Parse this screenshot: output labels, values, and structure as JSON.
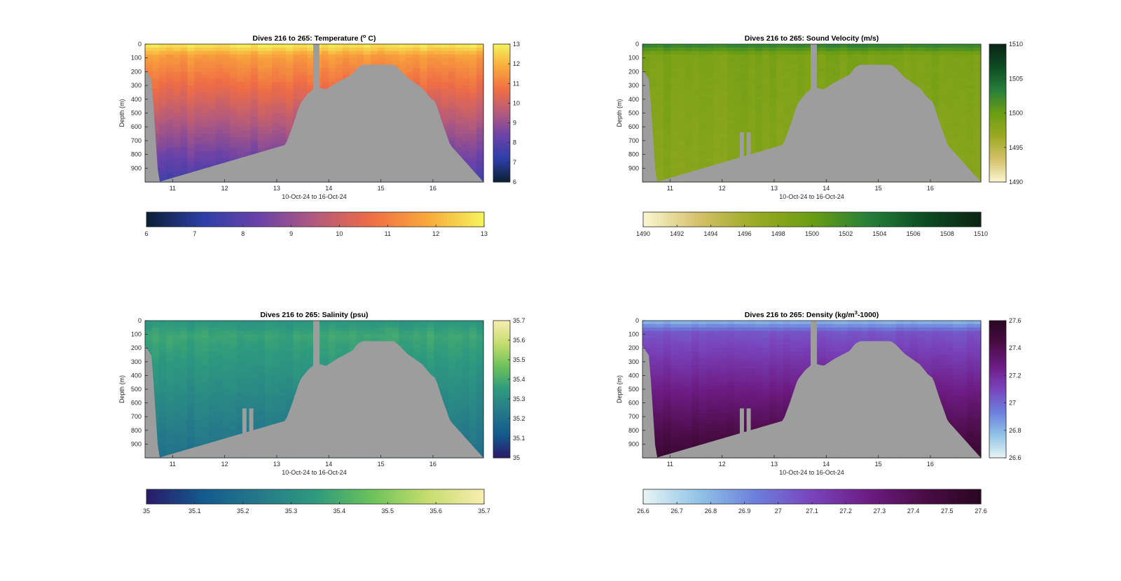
{
  "colors": {
    "land": "#9d9d9d",
    "temperature": [
      "#0b1f33",
      "#2c3fa8",
      "#6a42a8",
      "#b35a7d",
      "#ef6d45",
      "#f9a93b",
      "#f4f45c"
    ],
    "sound_velocity": [
      "#fbf7d2",
      "#d4c068",
      "#9aaa22",
      "#6a9d12",
      "#26803a",
      "#0d4c22",
      "#0b2414"
    ],
    "salinity": [
      "#2a1a68",
      "#135a8e",
      "#25798a",
      "#2e9a7e",
      "#6bc25a",
      "#c6dd6e",
      "#f8edb0"
    ],
    "density": [
      "#e8f4f4",
      "#90c3e6",
      "#6c7fdc",
      "#7944bd",
      "#6d1c83",
      "#4a0c45",
      "#2a0620"
    ]
  },
  "chart_data": [
    {
      "type": "heatmap",
      "id": "temperature",
      "title": "Dives 216 to 265: Temperature (",
      "title_sup": "o",
      "title_tail": " C)",
      "xlabel": "10-Oct-24 to 16-Oct-24",
      "ylabel": "Depth (m)",
      "xlim": [
        10.47,
        16.97
      ],
      "ylim": [
        0,
        1000
      ],
      "x_ticks": [
        11,
        12,
        13,
        14,
        15,
        16
      ],
      "x_tick_labels": [
        "11",
        "12",
        "13",
        "14",
        "15",
        "16"
      ],
      "y_ticks": [
        0,
        100,
        200,
        300,
        400,
        500,
        600,
        700,
        800,
        900
      ],
      "y_tick_labels": [
        "0",
        "100",
        "200",
        "300",
        "400",
        "500",
        "600",
        "700",
        "800",
        "900"
      ],
      "clim": [
        6,
        13
      ],
      "colorbar_v_ticks": [
        6,
        7,
        8,
        9,
        10,
        11,
        12,
        13
      ],
      "colorbar_v_labels": [
        "6",
        "7",
        "8",
        "9",
        "10",
        "11",
        "12",
        "13"
      ],
      "colorbar_h_ticks": [
        6,
        7,
        8,
        9,
        10,
        11,
        12,
        13
      ],
      "colorbar_h_labels": [
        "6",
        "7",
        "8",
        "9",
        "10",
        "11",
        "12",
        "13"
      ],
      "profile": {
        "surface": 12.9,
        "mixed": 11.6,
        "deep": 7.6,
        "mixed_depth": 90,
        "variability": 0.35
      }
    },
    {
      "type": "heatmap",
      "id": "sound_velocity",
      "title": "Dives 216 to 265: Sound Velocity (m/s)",
      "title_sup": "",
      "title_tail": "",
      "xlabel": "10-Oct-24 to 16-Oct-24",
      "ylabel": "Depth (m)",
      "xlim": [
        10.47,
        16.97
      ],
      "ylim": [
        0,
        1000
      ],
      "x_ticks": [
        11,
        12,
        13,
        14,
        15,
        16
      ],
      "x_tick_labels": [
        "11",
        "12",
        "13",
        "14",
        "15",
        "16"
      ],
      "y_ticks": [
        0,
        100,
        200,
        300,
        400,
        500,
        600,
        700,
        800,
        900
      ],
      "y_tick_labels": [
        "0",
        "100",
        "200",
        "300",
        "400",
        "500",
        "600",
        "700",
        "800",
        "900"
      ],
      "clim": [
        1490,
        1510
      ],
      "colorbar_v_ticks": [
        1490,
        1495,
        1500,
        1505,
        1510
      ],
      "colorbar_v_labels": [
        "1490",
        "1495",
        "1500",
        "1505",
        "1510"
      ],
      "colorbar_h_ticks": [
        1490,
        1492,
        1494,
        1496,
        1498,
        1500,
        1502,
        1504,
        1506,
        1508,
        1510
      ],
      "colorbar_h_labels": [
        "1490",
        "1492",
        "1494",
        "1496",
        "1498",
        "1500",
        "1502",
        "1504",
        "1506",
        "1508",
        "1510"
      ],
      "profile": {
        "surface": 1503.2,
        "mixed": 1498.8,
        "deep": 1498.0,
        "mixed_depth": 80,
        "variability": 0.9
      }
    },
    {
      "type": "heatmap",
      "id": "salinity",
      "title": "Dives 216 to 265: Salinity (psu)",
      "title_sup": "",
      "title_tail": "",
      "xlabel": "10-Oct-24 to 16-Oct-24",
      "ylabel": "Depth (m)",
      "xlim": [
        10.47,
        16.97
      ],
      "ylim": [
        0,
        1000
      ],
      "x_ticks": [
        11,
        12,
        13,
        14,
        15,
        16
      ],
      "x_tick_labels": [
        "11",
        "12",
        "13",
        "14",
        "15",
        "16"
      ],
      "y_ticks": [
        0,
        100,
        200,
        300,
        400,
        500,
        600,
        700,
        800,
        900
      ],
      "y_tick_labels": [
        "0",
        "100",
        "200",
        "300",
        "400",
        "500",
        "600",
        "700",
        "800",
        "900"
      ],
      "clim": [
        35,
        35.7
      ],
      "colorbar_v_ticks": [
        35,
        35.1,
        35.2,
        35.3,
        35.4,
        35.5,
        35.6,
        35.7
      ],
      "colorbar_v_labels": [
        "35",
        "35.1",
        "35.2",
        "35.3",
        "35.4",
        "35.5",
        "35.6",
        "35.7"
      ],
      "colorbar_h_ticks": [
        35,
        35.1,
        35.2,
        35.3,
        35.4,
        35.5,
        35.6,
        35.7
      ],
      "colorbar_h_labels": [
        "35",
        "35.1",
        "35.2",
        "35.3",
        "35.4",
        "35.5",
        "35.6",
        "35.7"
      ],
      "profile": {
        "surface": 35.33,
        "mixed": 35.38,
        "deep": 35.2,
        "mixed_depth": 110,
        "variability": 0.03
      }
    },
    {
      "type": "heatmap",
      "id": "density",
      "title": "Dives 216 to 265: Density (kg/m",
      "title_sup": "3",
      "title_tail": "-1000)",
      "xlabel": "10-Oct-24 to 16-Oct-24",
      "ylabel": "Depth (m)",
      "xlim": [
        10.47,
        16.97
      ],
      "ylim": [
        0,
        1000
      ],
      "x_ticks": [
        11,
        12,
        13,
        14,
        15,
        16
      ],
      "x_tick_labels": [
        "11",
        "12",
        "13",
        "14",
        "15",
        "16"
      ],
      "y_ticks": [
        0,
        100,
        200,
        300,
        400,
        500,
        600,
        700,
        800,
        900
      ],
      "y_tick_labels": [
        "0",
        "100",
        "200",
        "300",
        "400",
        "500",
        "600",
        "700",
        "800",
        "900"
      ],
      "clim": [
        26.6,
        27.6
      ],
      "colorbar_v_ticks": [
        26.6,
        26.8,
        27,
        27.2,
        27.4,
        27.6
      ],
      "colorbar_v_labels": [
        "26.6",
        "26.8",
        "27",
        "27.2",
        "27.4",
        "27.6"
      ],
      "colorbar_h_ticks": [
        26.6,
        26.7,
        26.8,
        26.9,
        27,
        27.1,
        27.2,
        27.3,
        27.4,
        27.5,
        27.6
      ],
      "colorbar_h_labels": [
        "26.6",
        "26.7",
        "26.8",
        "26.9",
        "27",
        "27.1",
        "27.2",
        "27.3",
        "27.4",
        "27.5",
        "27.6"
      ],
      "profile": {
        "surface": 26.78,
        "mixed": 27.05,
        "deep": 27.52,
        "mixed_depth": 85,
        "variability": 0.03
      }
    }
  ],
  "seafloor": {
    "x": [
      10.47,
      10.6,
      10.73,
      13.17,
      13.3,
      13.45,
      13.6,
      13.75,
      13.95,
      14.15,
      14.3,
      14.45,
      14.55,
      14.65,
      15.25,
      15.35,
      15.5,
      15.65,
      15.8,
      15.95,
      16.05,
      16.18,
      16.33,
      16.97
    ],
    "depth": [
      180,
      260,
      1000,
      730,
      600,
      430,
      360,
      310,
      330,
      280,
      250,
      220,
      170,
      150,
      150,
      180,
      240,
      280,
      320,
      390,
      420,
      570,
      730,
      1000
    ]
  },
  "no_data_columns": [
    {
      "panels": [
        "temperature",
        "sound_velocity",
        "salinity",
        "density"
      ],
      "x0": 13.7,
      "x1": 13.82,
      "depth0": 0,
      "depth1": 330
    },
    {
      "panels": [
        "sound_velocity",
        "salinity",
        "density"
      ],
      "x0": 12.34,
      "x1": 12.42,
      "depth0": 640,
      "depth1": 1000
    },
    {
      "panels": [
        "sound_velocity",
        "salinity",
        "density"
      ],
      "x0": 12.47,
      "x1": 12.55,
      "depth0": 640,
      "depth1": 1000
    }
  ]
}
